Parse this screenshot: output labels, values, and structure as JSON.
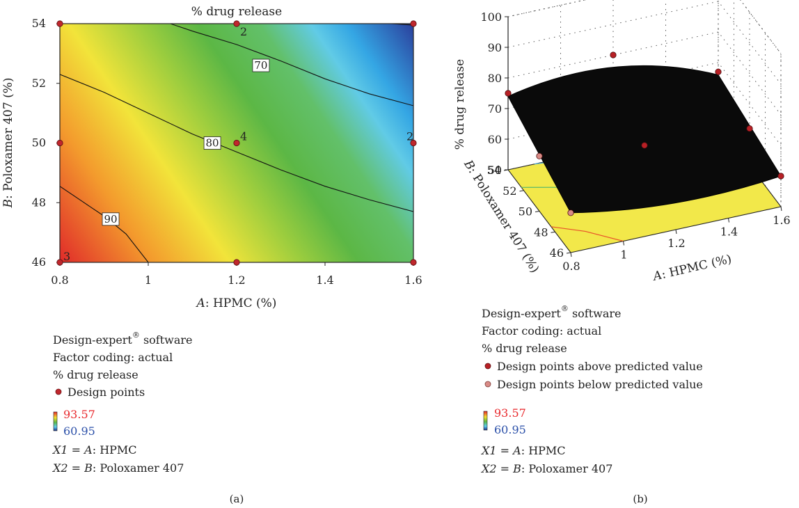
{
  "chart_data": [
    {
      "type": "contour",
      "panel_label": "(a)",
      "title": "% drug release",
      "xlabel_italic": "A",
      "xlabel_rest": ": HPMC (%)",
      "ylabel_italic": "B",
      "ylabel_rest": ": Poloxamer 407 (%)",
      "xlim": [
        0.8,
        1.6
      ],
      "ylim": [
        46,
        54
      ],
      "xticks": [
        "0.8",
        "1",
        "1.2",
        "1.4",
        "1.6"
      ],
      "yticks": [
        "46",
        "48",
        "50",
        "52",
        "54"
      ],
      "contours": [
        {
          "level": "70",
          "points": [
            [
              1.05,
              54
            ],
            [
              1.1,
              53.75
            ],
            [
              1.2,
              53.3
            ],
            [
              1.3,
              52.75
            ],
            [
              1.4,
              52.15
            ],
            [
              1.5,
              51.65
            ],
            [
              1.6,
              51.25
            ]
          ],
          "label_at": [
            1.255,
            52.6
          ]
        },
        {
          "level": "80",
          "points": [
            [
              0.8,
              52.3
            ],
            [
              0.9,
              51.7
            ],
            [
              1.0,
              51.0
            ],
            [
              1.1,
              50.3
            ],
            [
              1.2,
              49.7
            ],
            [
              1.3,
              49.1
            ],
            [
              1.4,
              48.55
            ],
            [
              1.5,
              48.1
            ],
            [
              1.6,
              47.7
            ]
          ],
          "label_at": [
            1.145,
            50.0
          ]
        },
        {
          "level": "90",
          "points": [
            [
              0.8,
              48.55
            ],
            [
              0.85,
              48.05
            ],
            [
              0.9,
              47.55
            ],
            [
              0.95,
              46.95
            ],
            [
              1.0,
              46.0
            ]
          ],
          "label_at": [
            0.915,
            47.45
          ]
        },
        {
          "level": "",
          "points": [
            [
              1.55,
              54
            ],
            [
              1.6,
              53.95
            ]
          ],
          "label_at": null
        }
      ],
      "design_points": [
        {
          "x": 0.8,
          "y": 54,
          "label": ""
        },
        {
          "x": 1.2,
          "y": 54,
          "label": "2"
        },
        {
          "x": 1.6,
          "y": 54,
          "label": ""
        },
        {
          "x": 0.8,
          "y": 50,
          "label": ""
        },
        {
          "x": 1.2,
          "y": 50,
          "label": "4"
        },
        {
          "x": 1.6,
          "y": 50,
          "label": "2"
        },
        {
          "x": 0.8,
          "y": 46,
          "label": "3"
        },
        {
          "x": 1.2,
          "y": 46,
          "label": ""
        },
        {
          "x": 1.6,
          "y": 46,
          "label": ""
        }
      ],
      "colorscale": {
        "max": "93.57",
        "min": "60.95",
        "colors": [
          "#e8262a",
          "#f7e12f",
          "#5cb745",
          "#5dcdf0",
          "#2a3f9a"
        ]
      },
      "legend": {
        "software_prefix": "Design-expert",
        "software_mark": "®",
        "software_suffix": " software",
        "factor_coding": "Factor coding: actual",
        "response": "% drug release",
        "points_label": "Design points",
        "x1_var": "X1",
        "x1_eq": " = ",
        "x1_factor": "A",
        "x1_name": ": HPMC",
        "x2_var": "X2",
        "x2_eq": " = ",
        "x2_factor": "B",
        "x2_name": ": Poloxamer 407"
      },
      "marker_color": "#c0272d",
      "label_max_color": "#e8262a",
      "label_min_color": "#2a4fa8"
    },
    {
      "type": "surface3d",
      "panel_label": "(b)",
      "zlabel": "% drug release",
      "xlabel_italic": "A",
      "xlabel_rest": ": HPMC (%)",
      "ylabel_italic": "B",
      "ylabel_rest": ": Poloxamer 407 (%)",
      "xticks": [
        "0.8",
        "1",
        "1.2",
        "1.4",
        "1.6"
      ],
      "yticks": [
        "46",
        "48",
        "50",
        "52",
        "54"
      ],
      "zticks": [
        "50",
        "60",
        "70",
        "80",
        "90",
        "100"
      ],
      "xlim": [
        0.8,
        1.6
      ],
      "ylim": [
        46,
        54
      ],
      "zlim": [
        50,
        100
      ],
      "surface_color": "#0a0a0a",
      "floor_color": "#f2e84a",
      "design_points": [
        {
          "x": 0.8,
          "y": 54,
          "z": 75,
          "above": true
        },
        {
          "x": 0.8,
          "y": 50,
          "z": 68,
          "above": false
        },
        {
          "x": 1.2,
          "y": 54,
          "z": 80,
          "above": true
        },
        {
          "x": 1.6,
          "y": 54,
          "z": 67,
          "above": true
        },
        {
          "x": 1.2,
          "y": 50,
          "z": 64,
          "above": true
        },
        {
          "x": 1.6,
          "y": 50,
          "z": 62,
          "above": true
        },
        {
          "x": 0.8,
          "y": 46,
          "z": 63,
          "above": false
        },
        {
          "x": 1.6,
          "y": 46,
          "z": 60,
          "above": true
        }
      ],
      "legend": {
        "software_prefix": "Design-expert",
        "software_mark": "®",
        "software_suffix": " software",
        "factor_coding": "Factor coding: actual",
        "response": "% drug release",
        "above_label": "Design points above predicted value",
        "below_label": "Design points below predicted value",
        "x1_var": "X1",
        "x1_eq": " = ",
        "x1_factor": "A",
        "x1_name": ": HPMC",
        "x2_var": "X2",
        "x2_eq": " = ",
        "x2_factor": "B",
        "x2_name": ": Poloxamer 407"
      },
      "colorscale": {
        "max": "93.57",
        "min": "60.95"
      },
      "above_color": "#b82025",
      "below_color": "#d98b86"
    }
  ]
}
